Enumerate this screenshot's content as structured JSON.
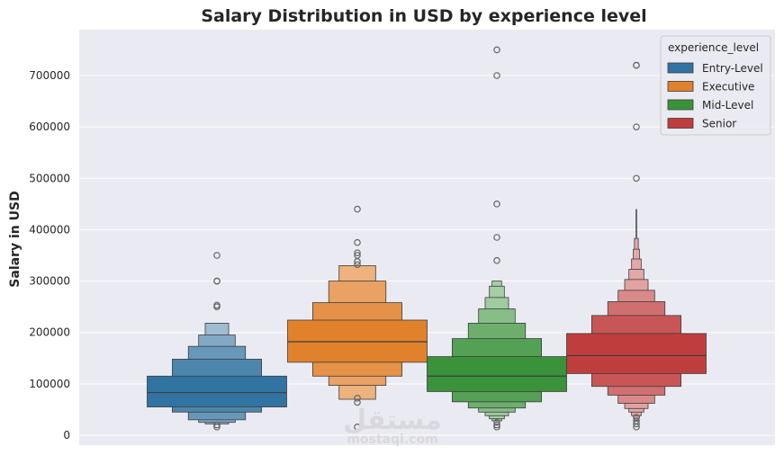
{
  "chart_data": {
    "type": "boxen",
    "title": "Salary Distribution in USD by experience level",
    "xlabel": "",
    "ylabel": "Salary in USD",
    "ylim": [
      -20000,
      790000
    ],
    "yticks": [
      0,
      100000,
      200000,
      300000,
      400000,
      500000,
      600000,
      700000
    ],
    "ytick_labels": [
      "0",
      "100000",
      "200000",
      "300000",
      "400000",
      "500000",
      "600000",
      "700000"
    ],
    "grid": true,
    "legend": {
      "title": "experience_level",
      "placement": "top-right",
      "entries": [
        "Entry-Level",
        "Executive",
        "Mid-Level",
        "Senior"
      ]
    },
    "colors": {
      "Entry-Level": "#3274a1",
      "Executive": "#e1812c",
      "Mid-Level": "#3a923a",
      "Senior": "#c03d3e",
      "background": "#eaeaf2"
    },
    "series": [
      {
        "name": "Entry-Level",
        "median": 83000,
        "boxes": [
          [
            55000,
            115000
          ],
          [
            45000,
            148000
          ],
          [
            30000,
            173000
          ],
          [
            25000,
            195000
          ],
          [
            22000,
            218000
          ]
        ],
        "outliers": [
          350000,
          300000,
          300000,
          253000,
          250000,
          20000,
          16000
        ]
      },
      {
        "name": "Executive",
        "median": 182000,
        "boxes": [
          [
            142000,
            224000
          ],
          [
            115000,
            258000
          ],
          [
            97000,
            300000
          ],
          [
            70000,
            330000
          ]
        ],
        "outliers": [
          440000,
          375000,
          355000,
          350000,
          338000,
          332000,
          72000,
          64000,
          16000
        ]
      },
      {
        "name": "Mid-Level",
        "median": 115000,
        "boxes": [
          [
            85000,
            153000
          ],
          [
            65000,
            188000
          ],
          [
            53000,
            218000
          ],
          [
            45000,
            246000
          ],
          [
            38000,
            268000
          ],
          [
            32000,
            290000
          ],
          [
            28000,
            300000
          ]
        ],
        "outliers": [
          750000,
          700000,
          450000,
          385000,
          340000,
          25000,
          20000,
          16000
        ]
      },
      {
        "name": "Senior",
        "median": 155000,
        "boxes": [
          [
            120000,
            198000
          ],
          [
            95000,
            233000
          ],
          [
            78000,
            260000
          ],
          [
            62000,
            282000
          ],
          [
            52000,
            303000
          ],
          [
            45000,
            323000
          ],
          [
            38000,
            343000
          ],
          [
            33000,
            362000
          ],
          [
            29000,
            383000
          ]
        ],
        "whisker": [
          383000,
          440000
        ],
        "outliers": [
          720000,
          720000,
          600000,
          500000,
          35000,
          28000,
          22000,
          16000
        ]
      }
    ]
  },
  "watermark": {
    "arabic": "مستقل",
    "latin": "mostaqi.com"
  }
}
